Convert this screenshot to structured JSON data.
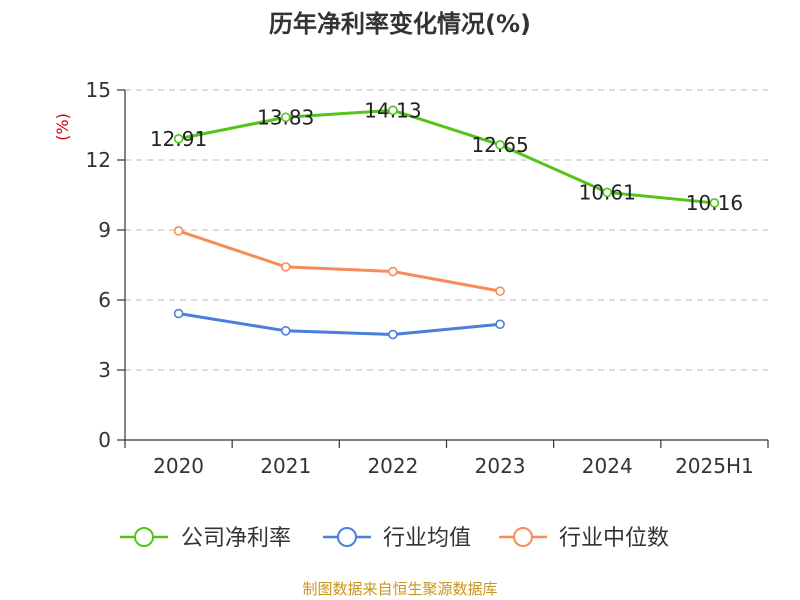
{
  "chart_data": {
    "type": "line",
    "title": "历年净利率变化情况(%)",
    "ylabel": "(%)",
    "categories": [
      "2020",
      "2021",
      "2022",
      "2023",
      "2024",
      "2025H1"
    ],
    "ylim": [
      0,
      15
    ],
    "yticks": [
      0,
      3,
      6,
      9,
      12,
      15
    ],
    "grid": true,
    "legend_position": "bottom",
    "series": [
      {
        "name": "公司净利率",
        "color": "#52c41a",
        "values": [
          12.91,
          13.83,
          14.13,
          12.65,
          10.61,
          10.16
        ],
        "labels": [
          "12.91",
          "13.83",
          "14.13",
          "12.65",
          "10.61",
          "10.16"
        ]
      },
      {
        "name": "行业均值",
        "color": "#4a7fdb",
        "values": [
          5.42,
          4.68,
          4.52,
          4.96,
          null,
          null
        ]
      },
      {
        "name": "行业中位数",
        "color": "#f78c5a",
        "values": [
          8.96,
          7.42,
          7.22,
          6.38,
          null,
          null
        ]
      }
    ]
  },
  "footer": {
    "source": "制图数据来自恒生聚源数据库"
  }
}
